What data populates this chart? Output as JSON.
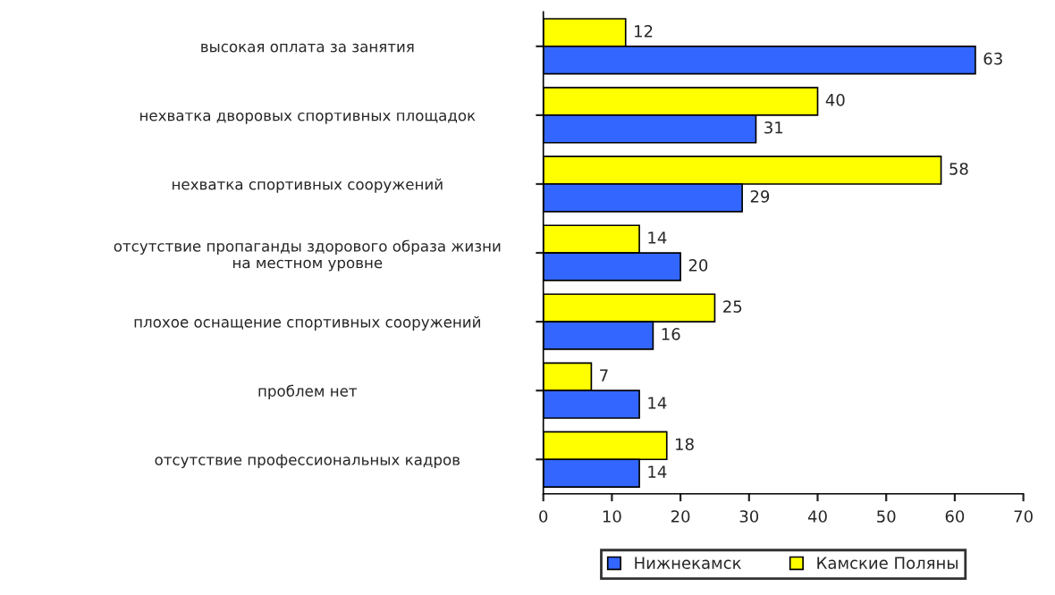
{
  "chart_data": {
    "type": "bar",
    "orientation": "horizontal",
    "categories": [
      "высокая оплата за занятия",
      "нехватка дворовых спортивных площадок",
      "нехватка спортивных сооружений",
      "отсутствие пропаганды здорового образа жизни\nна местном уровне",
      "плохое оснащение спортивных сооружений",
      "проблем нет",
      "отсутствие профессиональных кадров"
    ],
    "series": [
      {
        "name": "Камские Поляны",
        "color": "#ffff00",
        "values": [
          12,
          40,
          58,
          14,
          25,
          7,
          18
        ]
      },
      {
        "name": "Нижнекамск",
        "color": "#3366ff",
        "values": [
          63,
          31,
          29,
          20,
          16,
          14,
          14
        ]
      }
    ],
    "xlim": [
      0,
      70
    ],
    "xticks": [
      0,
      10,
      20,
      30,
      40,
      50,
      60,
      70
    ],
    "data_labels": true,
    "legend": "bottom",
    "grid": false
  }
}
